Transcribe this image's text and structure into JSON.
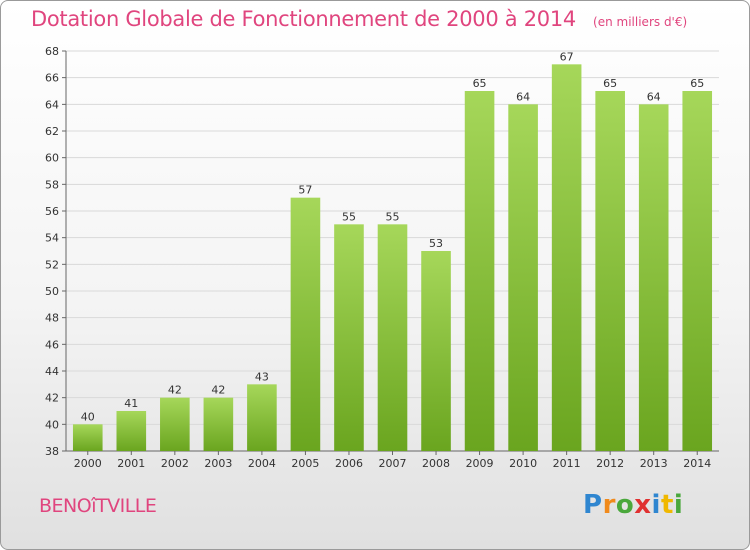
{
  "title": "Dotation Globale de Fonctionnement de 2000 à 2014",
  "subtitle": "(en milliers d'€)",
  "commune": "BENOîTVILLE",
  "logo": {
    "p": "P",
    "r": "r",
    "o": "o",
    "x": "x",
    "i": "i",
    "t": "t",
    "i2": "i"
  },
  "colors": {
    "bar_top": "#a6d75a",
    "bar_bottom": "#6aa51f",
    "title": "#e0457e",
    "grid": "#d9d9d9"
  },
  "chart_data": {
    "type": "bar",
    "title": "Dotation Globale de Fonctionnement de 2000 à 2014",
    "subtitle": "(en milliers d'€)",
    "categories": [
      "2000",
      "2001",
      "2002",
      "2003",
      "2004",
      "2005",
      "2006",
      "2007",
      "2008",
      "2009",
      "2010",
      "2011",
      "2012",
      "2013",
      "2014"
    ],
    "values": [
      40,
      41,
      42,
      42,
      43,
      57,
      55,
      55,
      53,
      65,
      64,
      67,
      65,
      64,
      65
    ],
    "ylim": [
      38,
      68
    ],
    "yticks": [
      38,
      40,
      42,
      44,
      46,
      48,
      50,
      52,
      54,
      56,
      58,
      60,
      62,
      64,
      66,
      68
    ],
    "grid": true,
    "xlabel": "",
    "ylabel": ""
  }
}
